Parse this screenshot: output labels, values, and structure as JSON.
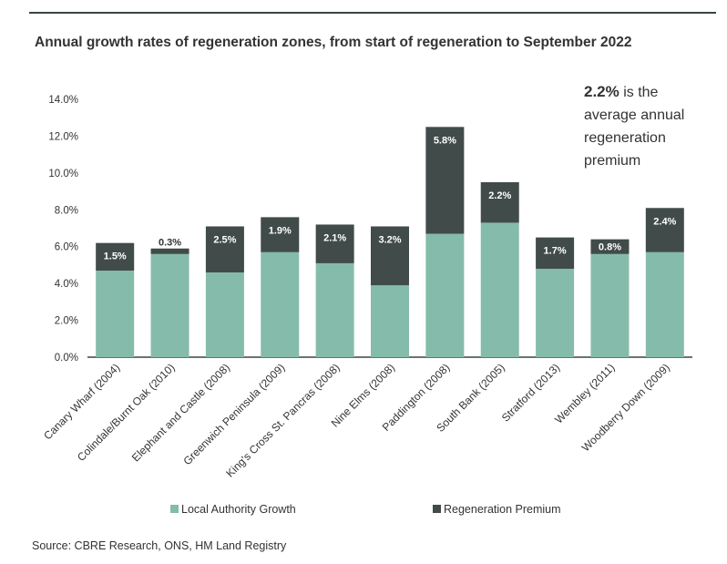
{
  "title": "Annual growth rates of regeneration zones, from start of regeneration to September 2022",
  "source": "Source: CBRE Research, ONS, HM Land Registry",
  "callout": {
    "value": "2.2%",
    "text_line1": " is the",
    "text_line2": "average annual",
    "text_line3": "regeneration",
    "text_line4": "premium"
  },
  "colors": {
    "local": "#85bbab",
    "premium": "#414b4a",
    "axis": "#3a4443"
  },
  "chart_data": {
    "type": "bar",
    "stacked": true,
    "categories": [
      "Canary Wharf (2004)",
      "Colindale/Burnt Oak (2010)",
      "Elephant and Castle (2008)",
      "Greenwich Peninsula (2009)",
      "King's Cross St. Pancras (2008)",
      "Nine Elms (2008)",
      "Paddington (2008)",
      "South Bank (2005)",
      "Stratford (2013)",
      "Wembley (2011)",
      "Woodberry Down (2009)"
    ],
    "series": [
      {
        "name": "Local Authority Growth",
        "values": [
          4.7,
          5.6,
          4.6,
          5.7,
          5.1,
          3.9,
          6.7,
          7.3,
          4.8,
          5.6,
          5.7
        ]
      },
      {
        "name": "Regeneration Premium",
        "values": [
          1.5,
          0.3,
          2.5,
          1.9,
          2.1,
          3.2,
          5.8,
          2.2,
          1.7,
          0.8,
          2.4
        ]
      }
    ],
    "premium_labels": [
      "1.5%",
      "0.3%",
      "2.5%",
      "1.9%",
      "2.1%",
      "3.2%",
      "5.8%",
      "2.2%",
      "1.7%",
      "0.8%",
      "2.4%"
    ],
    "ylim": [
      0,
      14
    ],
    "yticks": [
      "0.0%",
      "2.0%",
      "4.0%",
      "6.0%",
      "8.0%",
      "10.0%",
      "12.0%",
      "14.0%"
    ],
    "legend": {
      "placement": "bottom",
      "items": [
        "Local Authority Growth",
        "Regeneration Premium"
      ]
    },
    "grid": false
  }
}
